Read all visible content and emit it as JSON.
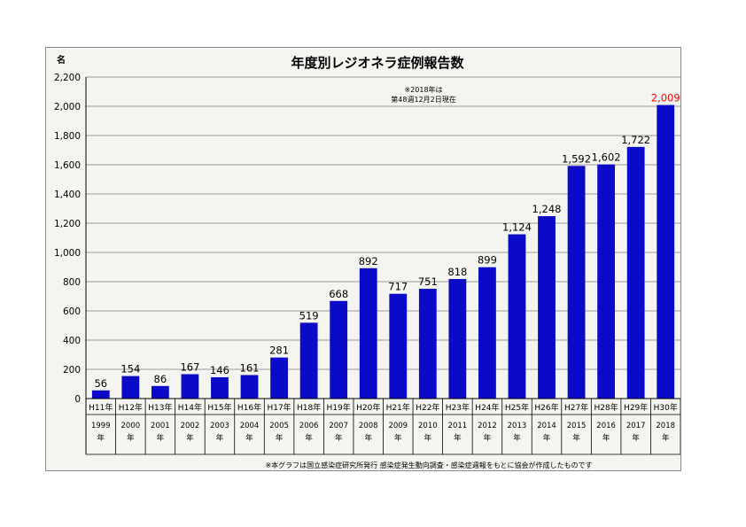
{
  "chart_data": {
    "type": "bar",
    "title": "年度別レジオネラ症例報告数",
    "unit_label": "名",
    "note_lines": [
      "※2018年は",
      "第48週12月2日現在"
    ],
    "footnote": "※本グラフは国立感染症研究所発行 感染症発生動向調査・感染症週報をもとに協会が作成したものです",
    "categories": [
      "H11年",
      "H12年",
      "H13年",
      "H14年",
      "H15年",
      "H16年",
      "H17年",
      "H18年",
      "H19年",
      "H20年",
      "H21年",
      "H22年",
      "H23年",
      "H24年",
      "H25年",
      "H26年",
      "H27年",
      "H28年",
      "H29年",
      "H30年"
    ],
    "years": [
      "1999",
      "2000",
      "2001",
      "2002",
      "2003",
      "2004",
      "2005",
      "2006",
      "2007",
      "2008",
      "2009",
      "2010",
      "2011",
      "2012",
      "2013",
      "2014",
      "2015",
      "2016",
      "2017",
      "2018"
    ],
    "year_suffix": "年",
    "values": [
      56,
      154,
      86,
      167,
      146,
      161,
      281,
      519,
      668,
      892,
      717,
      751,
      818,
      899,
      1124,
      1248,
      1592,
      1602,
      1722,
      2009
    ],
    "value_labels": [
      "56",
      "154",
      "86",
      "167",
      "146",
      "161",
      "281",
      "519",
      "668",
      "892",
      "717",
      "751",
      "818",
      "899",
      "1,124",
      "1,248",
      "1,592",
      "1,602",
      "1,722",
      "2,009"
    ],
    "highlight_index": 19,
    "ylim": [
      0,
      2200
    ],
    "yticks": [
      0,
      200,
      400,
      600,
      800,
      1000,
      1200,
      1400,
      1600,
      1800,
      2000,
      2200
    ],
    "ytick_labels": [
      "0",
      "200",
      "400",
      "600",
      "800",
      "1,000",
      "1,200",
      "1,400",
      "1,600",
      "1,800",
      "2,000",
      "2,200"
    ],
    "grid": true,
    "legend": "none",
    "colors": {
      "bar": "#0a0ac8",
      "highlight_label": "#ff0000",
      "grid": "#9a9a9a",
      "background": "#f4f4f0"
    }
  }
}
